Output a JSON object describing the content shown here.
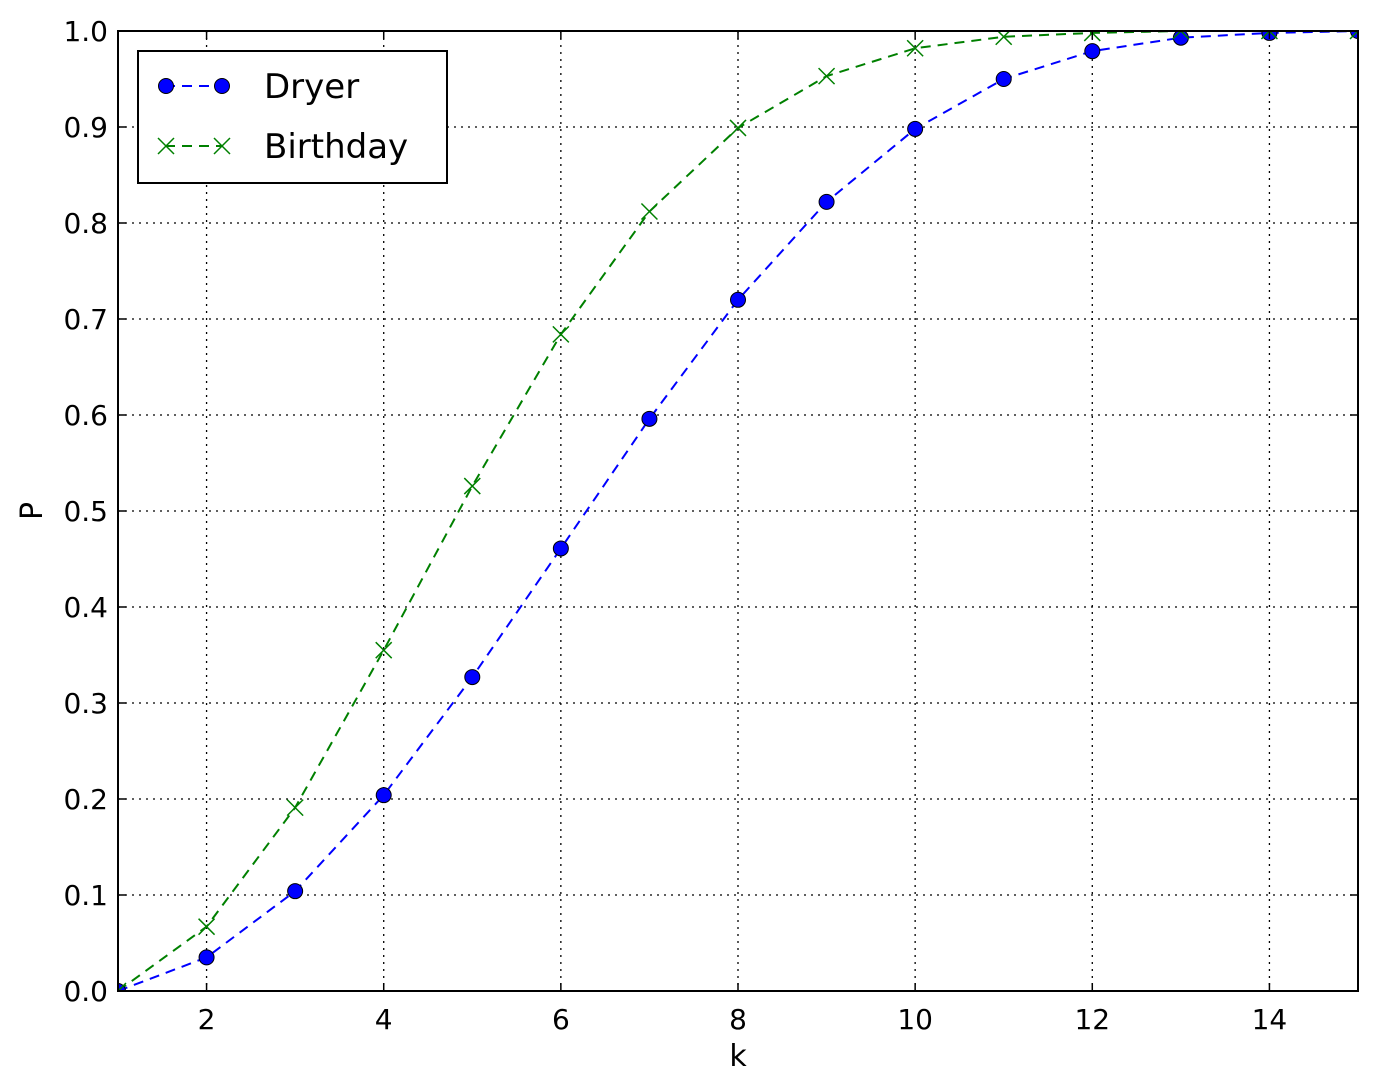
{
  "chart_data": {
    "type": "line",
    "title": "",
    "xlabel": "k",
    "ylabel": "P",
    "xlim": [
      1,
      15
    ],
    "ylim": [
      0,
      1
    ],
    "xticks": [
      2,
      4,
      6,
      8,
      10,
      12,
      14
    ],
    "yticks": [
      0.0,
      0.1,
      0.2,
      0.3,
      0.4,
      0.5,
      0.6,
      0.7,
      0.8,
      0.9,
      1.0
    ],
    "grid": true,
    "legend_position": "upper-left",
    "x": [
      1,
      2,
      3,
      4,
      5,
      6,
      7,
      8,
      9,
      10,
      11,
      12,
      13,
      14,
      15
    ],
    "series": [
      {
        "name": "Dryer",
        "color": "#0000ff",
        "marker": "circle",
        "linestyle": "dashed",
        "values": [
          0.0,
          0.035,
          0.104,
          0.204,
          0.327,
          0.461,
          0.596,
          0.72,
          0.822,
          0.898,
          0.95,
          0.979,
          0.993,
          0.998,
          1.0
        ]
      },
      {
        "name": "Birthday",
        "color": "#008000",
        "marker": "x",
        "linestyle": "dashed",
        "values": [
          0.0,
          0.067,
          0.191,
          0.355,
          0.526,
          0.684,
          0.812,
          0.899,
          0.953,
          0.982,
          0.994,
          0.998,
          1.0,
          1.0,
          1.0
        ]
      }
    ]
  }
}
